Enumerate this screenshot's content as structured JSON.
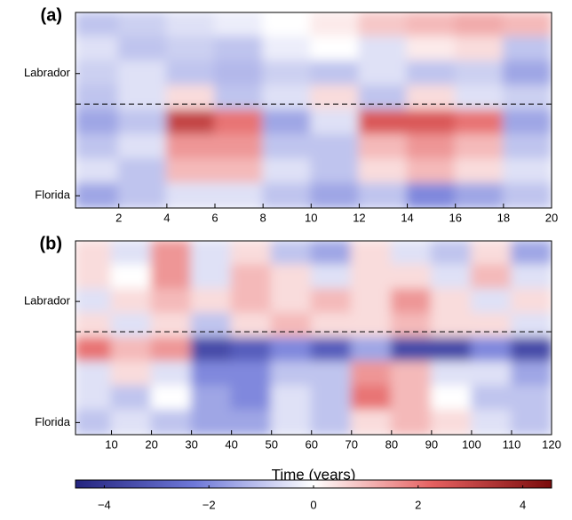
{
  "chart_data": [
    {
      "type": "heatmap",
      "panel_label": "(a)",
      "bins": [
        0.2,
        2,
        4,
        6,
        8,
        10,
        12,
        14,
        16,
        18,
        20
      ],
      "rows": [
        null,
        null,
        "Labrador",
        null,
        null,
        null,
        null,
        "Florida"
      ],
      "values": [
        [
          -1,
          -0.8,
          -0.5,
          -0.3,
          0,
          0.3,
          0.8,
          1,
          1.2,
          1
        ],
        [
          -0.5,
          -1,
          -0.8,
          -1,
          -0.3,
          0,
          -0.5,
          0.3,
          0.5,
          -1
        ],
        [
          -0.8,
          -0.5,
          -1,
          -1.2,
          -0.8,
          -1,
          -0.5,
          -1,
          -0.8,
          -1.5
        ],
        [
          -1,
          -0.5,
          0.5,
          -1,
          -0.5,
          0.5,
          -1,
          0.5,
          -0.5,
          -0.8
        ],
        [
          -1.5,
          -1,
          3,
          2,
          -1.5,
          -0.5,
          2.5,
          2.5,
          2,
          -1.5
        ],
        [
          -1,
          -0.5,
          1.5,
          1.5,
          -1,
          -1,
          1,
          1.5,
          1,
          -1
        ],
        [
          -0.5,
          -1,
          1,
          1,
          -0.5,
          -1,
          0.5,
          1,
          0.5,
          -0.5
        ],
        [
          -1.5,
          -1,
          -0.5,
          -0.5,
          -1,
          -1.5,
          -1,
          -2,
          -1.5,
          -1
        ]
      ],
      "xlim": [
        0.2,
        20
      ],
      "xticks": [
        2,
        4,
        6,
        8,
        10,
        12,
        14,
        16,
        18,
        20
      ]
    },
    {
      "type": "heatmap",
      "panel_label": "(b)",
      "xlabel": "Time (years)",
      "bins": [
        1,
        10,
        20,
        30,
        40,
        50,
        60,
        70,
        80,
        90,
        100,
        110,
        120
      ],
      "rows": [
        null,
        null,
        "Labrador",
        null,
        null,
        null,
        null,
        "Florida"
      ],
      "values": [
        [
          0.5,
          -0.5,
          1.5,
          -0.5,
          0.5,
          -1,
          -1.5,
          0.5,
          -0.5,
          -1,
          0.5,
          -1.5
        ],
        [
          0.5,
          0,
          1.5,
          -0.5,
          1,
          0.5,
          -0.5,
          0.5,
          0.5,
          -0.5,
          1,
          -0.5
        ],
        [
          -0.5,
          0.5,
          1,
          0.5,
          1,
          0.5,
          1,
          0.5,
          1.5,
          0.5,
          -0.5,
          0.5
        ],
        [
          0.5,
          -0.5,
          0.5,
          -1,
          0.5,
          1,
          0.5,
          0.5,
          1,
          0.5,
          0.5,
          -0.5
        ],
        [
          2,
          1,
          1.5,
          -3.5,
          -3,
          -2,
          -3,
          -1.5,
          -3.5,
          -3.5,
          -2,
          -3.5
        ],
        [
          -0.5,
          0.5,
          -0.5,
          -2,
          -2,
          -1,
          -1,
          1.5,
          1,
          -0.5,
          -0.5,
          -1.5
        ],
        [
          -0.5,
          -1,
          0,
          -1.5,
          -2,
          -0.5,
          -1,
          2,
          1,
          0,
          -1,
          -1
        ],
        [
          -1,
          -0.5,
          -1,
          -1.5,
          -1.5,
          -0.5,
          -1,
          0.5,
          1,
          0.5,
          -0.5,
          -1
        ]
      ],
      "xlim": [
        1,
        120
      ],
      "xticks": [
        10,
        20,
        30,
        40,
        50,
        60,
        70,
        80,
        90,
        100,
        110,
        120
      ]
    }
  ],
  "colorbar": {
    "clim": [
      -4.55,
      4.55
    ],
    "colors": [
      "#24247f",
      "#6e78d8",
      "#ffffff",
      "#e56060",
      "#7a0b0b"
    ],
    "ticks": [
      {
        "value": -4,
        "label": "−4"
      },
      {
        "value": -2,
        "label": "−2"
      },
      0,
      2,
      4
    ]
  }
}
